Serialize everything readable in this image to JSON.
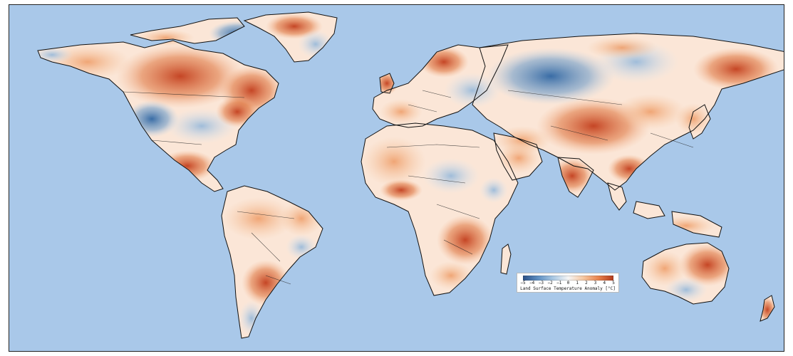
{
  "map": {
    "ocean_color": "#a9c8e9",
    "land_base_color": "#fbe6d7",
    "warm_color": "#c4411f",
    "cool_color": "#3f78b1",
    "border_color": "#111111"
  },
  "legend": {
    "label": "Land Surface Temperature Anomaly [°C]",
    "ticks": [
      "−5",
      "−4",
      "−3",
      "−2",
      "−1",
      "0",
      "1",
      "2",
      "3",
      "4",
      "5"
    ],
    "range": [
      -5,
      5
    ],
    "colormap": [
      "#2a4f86",
      "#5e8fc2",
      "#a9c8e3",
      "#f5f5f5",
      "#f6c7a0",
      "#e9834d",
      "#b33a1a"
    ]
  }
}
